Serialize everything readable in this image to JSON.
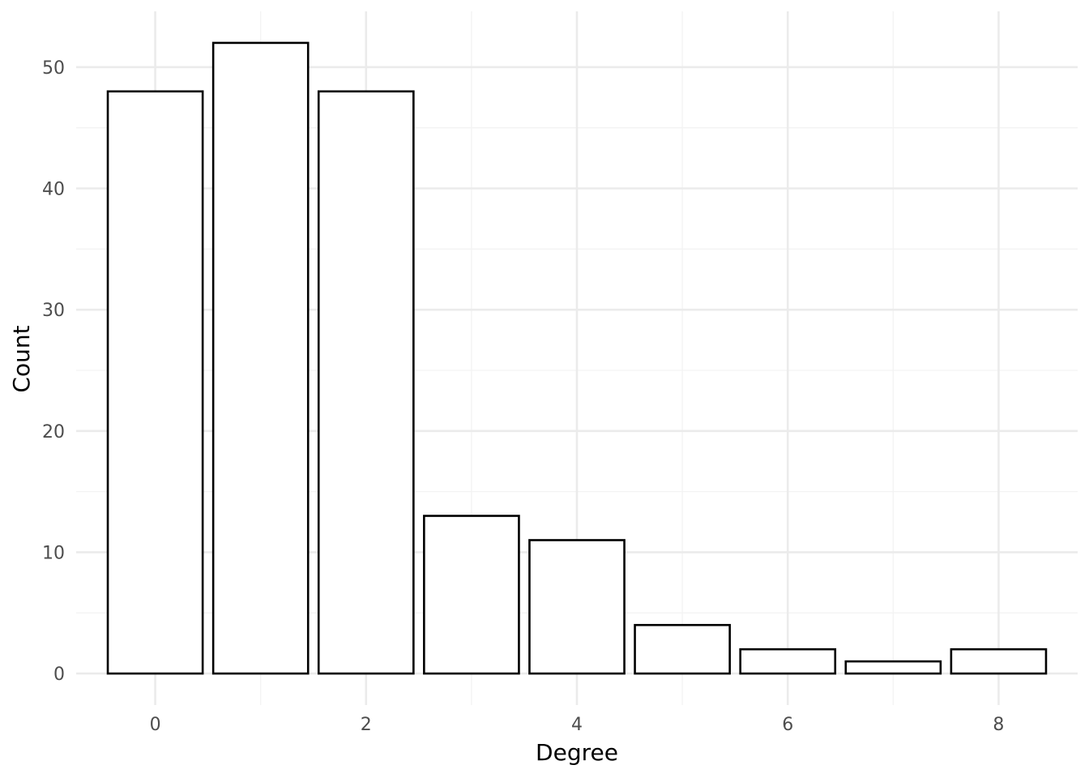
{
  "chart_data": {
    "type": "bar",
    "title": "",
    "xlabel": "Degree",
    "ylabel": "Count",
    "x": [
      0,
      1,
      2,
      3,
      4,
      5,
      6,
      7,
      8
    ],
    "values": [
      48,
      52,
      48,
      13,
      11,
      4,
      2,
      1,
      2
    ],
    "xlim": [
      -0.75,
      8.75
    ],
    "ylim": [
      -2.6,
      54.6
    ],
    "x_ticks": [
      0,
      2,
      4,
      6,
      8
    ],
    "y_ticks": [
      0,
      10,
      20,
      30,
      40,
      50
    ],
    "grid": true,
    "bar_fill": "#ffffff",
    "bar_outline": "#000000",
    "grid_color": "#ebebeb",
    "tick_label_color": "#4d4d4d"
  }
}
